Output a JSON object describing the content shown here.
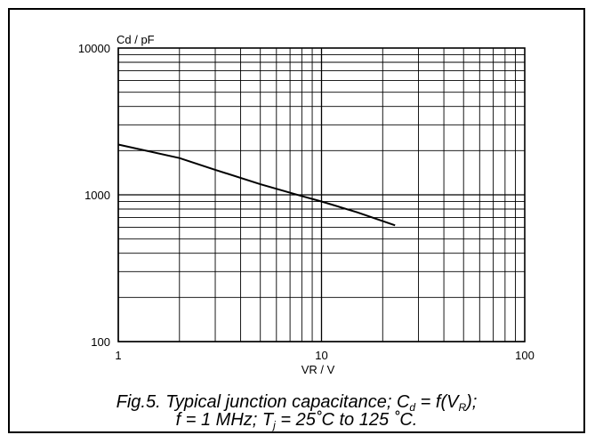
{
  "chart_data": {
    "type": "line",
    "xscale": "log",
    "yscale": "log",
    "xlim": [
      1,
      100
    ],
    "ylim": [
      100,
      10000
    ],
    "grid": true,
    "xlabel": "VR / V",
    "ylabel": "Cd / pF",
    "x_ticks": [
      "1",
      "10",
      "100"
    ],
    "y_ticks": [
      "100",
      "1000",
      "10000"
    ],
    "series": [
      {
        "x": [
          1,
          2,
          3,
          5,
          8,
          10,
          15,
          23
        ],
        "y": [
          2200,
          1780,
          1480,
          1180,
          980,
          900,
          760,
          620
        ]
      }
    ]
  },
  "caption": {
    "line1_prefix": "Fig.5.    Typical junction capacitance; C",
    "line1_sub1": "d",
    "line1_mid": " = f(V",
    "line1_sub2": "R",
    "line1_suffix": ");",
    "line2_prefix": "f = 1 MHz; T",
    "line2_sub": "j",
    "line2_suffix": " = 25˚C to 125 ˚C."
  }
}
